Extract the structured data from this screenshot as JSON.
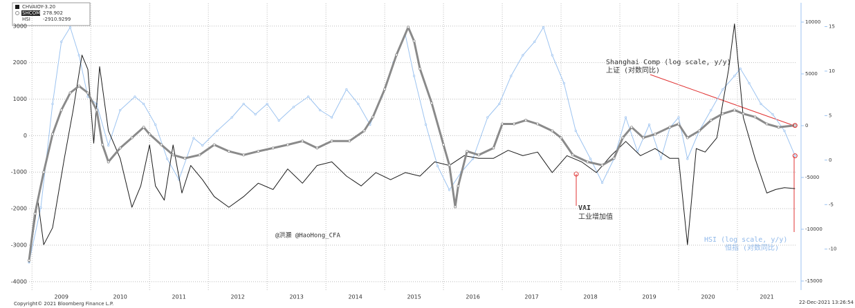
{
  "chart_data": {
    "type": "line",
    "annotations": {
      "shanghai_en": "Shanghai Comp (log scale, y/y)",
      "shanghai_cn": "上证 (对数同比)",
      "vai_en": "VAI",
      "vai_cn": "工业增加值",
      "author": "@洪灝 @HaoHong_CFA",
      "hsi_en": "HSI (log scale, y/y)",
      "hsi_cn": "恒指 (对数同比)",
      "copyright": "Copyright© 2021 Bloomberg Finance L.P.",
      "timestamp": "22-Dec-2021 13:26:54"
    },
    "legend_values": [
      "-3.20",
      "278.902",
      "-2910.9299"
    ],
    "xlim": [
      2008.95,
      2022.0
    ],
    "xticks": [
      {
        "value": 2009,
        "label": "2009"
      },
      {
        "value": 2010,
        "label": "2010"
      },
      {
        "value": 2011,
        "label": "2011"
      },
      {
        "value": 2012,
        "label": "2012"
      },
      {
        "value": 2013,
        "label": "2013"
      },
      {
        "value": 2014,
        "label": "2014"
      },
      {
        "value": 2015,
        "label": "2015"
      },
      {
        "value": 2016,
        "label": "2016"
      },
      {
        "value": 2017,
        "label": "2017"
      },
      {
        "value": 2018,
        "label": "2018"
      },
      {
        "value": 2019,
        "label": "2019"
      },
      {
        "value": 2020,
        "label": "2020"
      },
      {
        "value": 2021,
        "label": "2021"
      }
    ],
    "ylim": [
      -4230,
      3620
    ],
    "yticks": [
      3000,
      2000,
      1000,
      0,
      -1000,
      -2000,
      -3000,
      -4000
    ],
    "y2lim": [
      -15870,
      11800
    ],
    "y2ticks": [
      10000,
      5000,
      0,
      -5000,
      -10000,
      -15000
    ],
    "y3lim": [
      -14.6,
      17.6
    ],
    "y3ticks": [
      15,
      10,
      5,
      0,
      -5,
      -10
    ],
    "grid": true,
    "series": [
      {
        "name": "CHVAIOY",
        "color": "#1a1a1a",
        "axis": "y3",
        "x": [
          2008.95,
          2009.1,
          2009.2,
          2009.35,
          2009.55,
          2009.7,
          2009.85,
          2009.95,
          2010.05,
          2010.15,
          2010.3,
          2010.5,
          2010.7,
          2010.85,
          2011.0,
          2011.1,
          2011.25,
          2011.4,
          2011.55,
          2011.7,
          2011.9,
          2012.1,
          2012.35,
          2012.6,
          2012.85,
          2013.1,
          2013.35,
          2013.6,
          2013.85,
          2014.1,
          2014.35,
          2014.6,
          2014.85,
          2015.1,
          2015.35,
          2015.6,
          2015.85,
          2016.1,
          2016.35,
          2016.6,
          2016.85,
          2017.1,
          2017.35,
          2017.6,
          2017.85,
          2018.1,
          2018.35,
          2018.6,
          2018.85,
          2019.1,
          2019.35,
          2019.6,
          2019.85,
          2020.0,
          2020.15,
          2020.3,
          2020.45,
          2020.65,
          2020.85,
          2020.95,
          2021.1,
          2021.3,
          2021.5,
          2021.65,
          2021.8,
          2021.98
        ],
        "values": [
          -11.5,
          -4.5,
          -9.5,
          -7.6,
          0.2,
          5.6,
          11.8,
          10.2,
          1.9,
          10.5,
          3.3,
          0.2,
          -5.3,
          -2.9,
          1.7,
          -2.9,
          -4.5,
          1.7,
          -3.7,
          -0.6,
          -2.2,
          -4.1,
          -5.3,
          -4.1,
          -2.6,
          -3.3,
          -1.0,
          -2.6,
          -0.6,
          -0.2,
          -1.8,
          -2.9,
          -1.4,
          -2.2,
          -1.4,
          -1.8,
          -0.2,
          -0.6,
          0.5,
          0.2,
          0.2,
          1.1,
          0.5,
          0.9,
          -1.4,
          0.5,
          -0.2,
          -1.4,
          0.5,
          2.1,
          0.5,
          1.3,
          0.2,
          0.2,
          -9.5,
          1.3,
          0.9,
          2.5,
          10.2,
          15.3,
          4.8,
          0.2,
          -3.7,
          -3.3,
          -3.1,
          -3.2
        ]
      },
      {
        "name": "SHCOMP",
        "color": "#8a8a8a",
        "axis": "y",
        "x": [
          2008.95,
          2009.05,
          2009.2,
          2009.35,
          2009.5,
          2009.65,
          2009.8,
          2009.95,
          2010.1,
          2010.2,
          2010.3,
          2010.5,
          2010.7,
          2010.9,
          2011.0,
          2011.2,
          2011.4,
          2011.6,
          2011.85,
          2012.1,
          2012.35,
          2012.6,
          2012.85,
          2013.1,
          2013.35,
          2013.6,
          2013.85,
          2014.1,
          2014.4,
          2014.65,
          2014.8,
          2015.0,
          2015.2,
          2015.4,
          2015.5,
          2015.6,
          2015.8,
          2016.0,
          2016.1,
          2016.2,
          2016.25,
          2016.4,
          2016.6,
          2016.85,
          2017.0,
          2017.2,
          2017.4,
          2017.6,
          2017.85,
          2018.0,
          2018.2,
          2018.45,
          2018.7,
          2018.9,
          2019.05,
          2019.2,
          2019.4,
          2019.6,
          2019.85,
          2020.0,
          2020.15,
          2020.35,
          2020.55,
          2020.75,
          2020.95,
          2021.1,
          2021.3,
          2021.5,
          2021.7,
          2021.98
        ],
        "values": [
          -3420,
          -2140,
          -1000,
          40,
          700,
          1170,
          1360,
          1170,
          700,
          -250,
          -720,
          -340,
          -60,
          230,
          40,
          -250,
          -530,
          -620,
          -530,
          -250,
          -430,
          -530,
          -430,
          -340,
          -250,
          -150,
          -340,
          -150,
          -150,
          130,
          510,
          1270,
          2210,
          2970,
          2590,
          1830,
          890,
          -250,
          -810,
          -1950,
          -1380,
          -430,
          -530,
          -340,
          320,
          320,
          420,
          320,
          130,
          -60,
          -530,
          -720,
          -810,
          -620,
          -60,
          230,
          -60,
          40,
          230,
          320,
          -60,
          130,
          420,
          600,
          700,
          600,
          510,
          320,
          230,
          278.902
        ]
      },
      {
        "name": "HSI",
        "color": "#9cc3f0",
        "axis": "y2",
        "x": [
          2008.95,
          2009.15,
          2009.35,
          2009.5,
          2009.65,
          2009.8,
          2009.95,
          2010.1,
          2010.3,
          2010.5,
          2010.75,
          2010.9,
          2011.1,
          2011.3,
          2011.5,
          2011.75,
          2011.9,
          2012.15,
          2012.4,
          2012.6,
          2012.8,
          2013.0,
          2013.2,
          2013.45,
          2013.7,
          2013.9,
          2014.1,
          2014.35,
          2014.55,
          2014.75,
          2014.95,
          2015.15,
          2015.35,
          2015.5,
          2015.7,
          2015.9,
          2016.1,
          2016.3,
          2016.5,
          2016.75,
          2016.95,
          2017.15,
          2017.35,
          2017.55,
          2017.7,
          2017.85,
          2018.05,
          2018.25,
          2018.5,
          2018.7,
          2018.9,
          2019.1,
          2019.3,
          2019.5,
          2019.7,
          2019.85,
          2020.0,
          2020.15,
          2020.35,
          2020.55,
          2020.75,
          2020.95,
          2021.05,
          2021.2,
          2021.4,
          2021.6,
          2021.8,
          2021.98
        ],
        "values": [
          -13200,
          -7900,
          2100,
          8100,
          9500,
          6800,
          2800,
          2100,
          -1900,
          1500,
          2800,
          2100,
          100,
          -3200,
          -5200,
          -1200,
          -1900,
          -500,
          800,
          2100,
          1100,
          2100,
          500,
          1800,
          2800,
          1500,
          800,
          3500,
          2100,
          100,
          2800,
          6100,
          8800,
          4800,
          100,
          -3900,
          -6200,
          -4500,
          -3200,
          800,
          2100,
          4800,
          6800,
          8100,
          9500,
          6800,
          4100,
          -500,
          -3200,
          -5500,
          -3200,
          800,
          -2500,
          100,
          -3200,
          -200,
          800,
          -3200,
          -500,
          1500,
          3500,
          4800,
          5500,
          4100,
          2100,
          1100,
          -500,
          -2910.9299
        ]
      }
    ]
  }
}
